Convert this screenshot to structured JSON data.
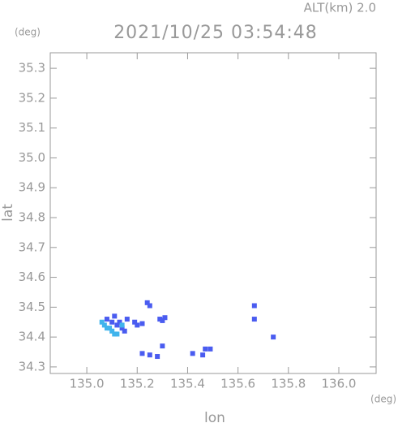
{
  "chart_data": {
    "type": "scatter",
    "title": "2021/10/25 03:54:48",
    "subtitle": "ALT(km) 2.0",
    "y_unit": "(deg)",
    "x_unit": "(deg)",
    "xlabel": "lon",
    "ylabel": "lat",
    "xlim": [
      134.855,
      136.148
    ],
    "ylim": [
      34.278,
      35.352
    ],
    "xticks": [
      {
        "value": 135,
        "label": "135.0"
      },
      135.2,
      135.4,
      135.6,
      135.8,
      {
        "value": 136,
        "label": "136.0"
      }
    ],
    "yticks": [
      34.3,
      34.4,
      34.5,
      34.6,
      34.7,
      34.8,
      34.9,
      {
        "value": 35,
        "label": "35.0"
      },
      35.1,
      35.2,
      35.3
    ],
    "grid": false,
    "series": [
      {
        "color": "#4a5cf0",
        "x": [
          135.08,
          135.1,
          135.12,
          135.14,
          135.16,
          135.13,
          135.15,
          135.11,
          135.2,
          135.22,
          135.19,
          135.24,
          135.25,
          135.29,
          135.31,
          135.3,
          135.22,
          135.25,
          135.28,
          135.3,
          135.42,
          135.46,
          135.47,
          135.49,
          135.665,
          135.665,
          135.74
        ],
        "y": [
          34.46,
          34.45,
          34.44,
          34.43,
          34.46,
          34.45,
          34.42,
          34.47,
          34.44,
          34.445,
          34.45,
          34.515,
          34.505,
          34.46,
          34.465,
          34.455,
          34.345,
          34.34,
          34.335,
          34.37,
          34.345,
          34.34,
          34.36,
          34.36,
          34.505,
          34.46,
          34.4
        ]
      },
      {
        "color": "#40b4ec",
        "x": [
          135.06,
          135.08,
          135.1,
          135.12,
          135.07,
          135.09,
          135.11,
          135.14
        ],
        "y": [
          34.45,
          34.43,
          34.42,
          34.41,
          34.44,
          34.43,
          34.41,
          34.44
        ]
      }
    ]
  }
}
